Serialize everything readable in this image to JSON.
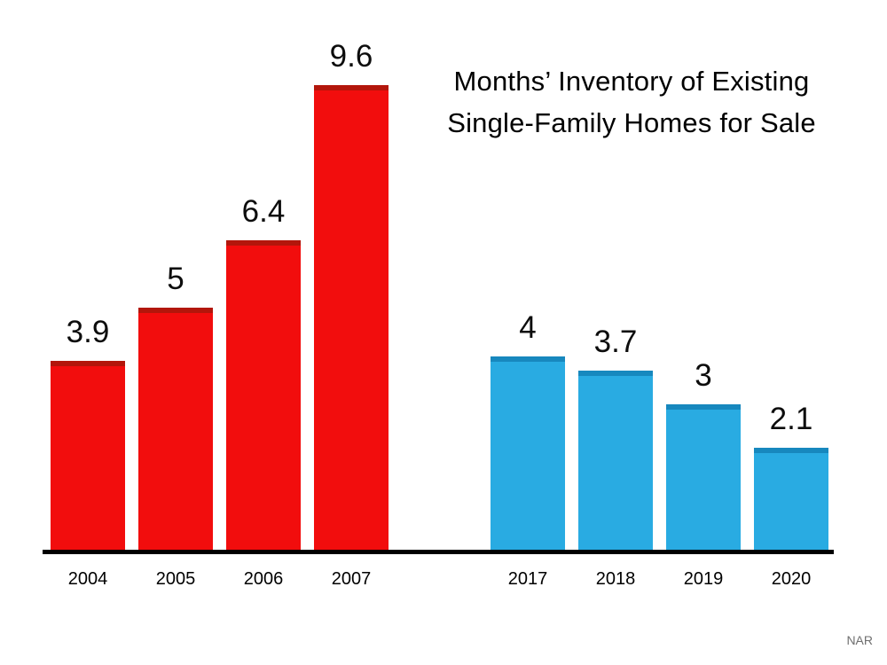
{
  "chart_data": {
    "type": "bar",
    "title": "Months’ Inventory of Existing Single-Family Homes for Sale",
    "categories": [
      "2004",
      "2005",
      "2006",
      "2007",
      "2017",
      "2018",
      "2019",
      "2020"
    ],
    "values": [
      3.9,
      5,
      6.4,
      9.6,
      4,
      3.7,
      3,
      2.1
    ],
    "value_labels": [
      "3.9",
      "5",
      "6.4",
      "9.6",
      "4",
      "3.7",
      "3",
      "2.1"
    ],
    "series": [
      {
        "name": "2004-2007",
        "color": "#f20d0d",
        "top_edge_color": "#b3160b",
        "indices": [
          0,
          1,
          2,
          3
        ]
      },
      {
        "name": "2017-2020",
        "color": "#29abe2",
        "top_edge_color": "#1788be",
        "indices": [
          4,
          5,
          6,
          7
        ]
      }
    ],
    "xlabel": "",
    "ylabel": "",
    "ylim": [
      0,
      10
    ],
    "grid": false,
    "legend": false,
    "axis_color": "#000000"
  },
  "source": {
    "label": "NAR"
  }
}
